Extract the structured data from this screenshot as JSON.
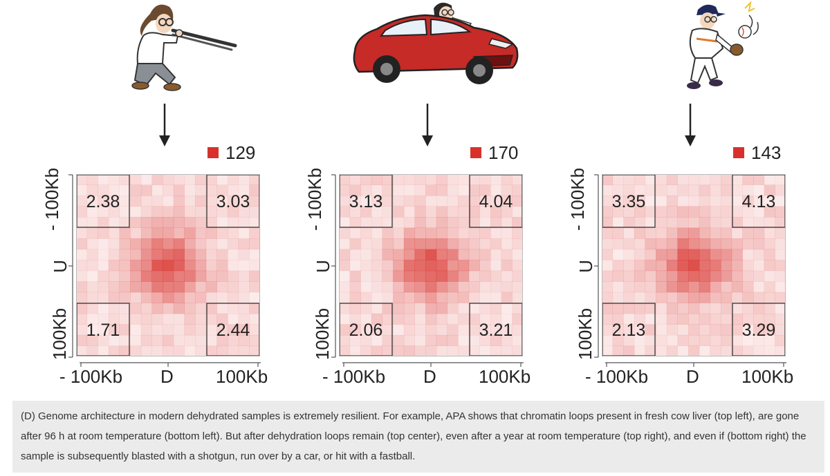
{
  "panels": [
    {
      "illustration": "person-shooting-shotgun-icon",
      "legend_color": "#d8312c",
      "legend_value": "129",
      "corner_values": {
        "top_left": "2.38",
        "top_right": "3.03",
        "bottom_left": "1.71",
        "bottom_right": "2.44"
      },
      "y_labels": {
        "top": "- 100Kb",
        "mid": "U",
        "bottom": "100Kb"
      },
      "x_labels": {
        "left": "- 100Kb",
        "mid": "D",
        "right": "100Kb"
      }
    },
    {
      "illustration": "person-driving-car-icon",
      "legend_color": "#d8312c",
      "legend_value": "170",
      "corner_values": {
        "top_left": "3.13",
        "top_right": "4.04",
        "bottom_left": "2.06",
        "bottom_right": "3.21"
      },
      "y_labels": {
        "top": "- 100Kb",
        "mid": "U",
        "bottom": "100Kb"
      },
      "x_labels": {
        "left": "- 100Kb",
        "mid": "D",
        "right": "100Kb"
      }
    },
    {
      "illustration": "baseball-pitcher-icon",
      "legend_color": "#d8312c",
      "legend_value": "143",
      "corner_values": {
        "top_left": "3.35",
        "top_right": "4.13",
        "bottom_left": "2.13",
        "bottom_right": "3.29"
      },
      "y_labels": {
        "top": "- 100Kb",
        "mid": "U",
        "bottom": "100Kb"
      },
      "x_labels": {
        "left": "- 100Kb",
        "mid": "D",
        "right": "100Kb"
      }
    }
  ],
  "heatmap_color": "#d8312c",
  "caption": "(D) Genome architecture in modern dehydrated samples is extremely resilient. For example, APA shows that chromatin loops present in fresh cow liver (top left), are gone after 96 h at room temperature (bottom left). But after dehydration loops remain (top center), even after a year at room temperature (top right), and even if (bottom right) the sample is subsequently blasted with a shotgun, run over by a car, or hit with a fastball."
}
